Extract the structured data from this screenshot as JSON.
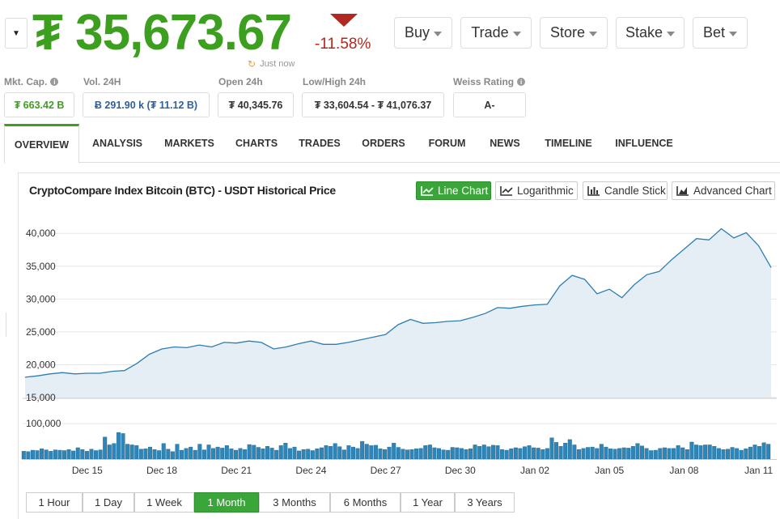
{
  "header": {
    "currency_symbol": "₮",
    "price": "35,673.67",
    "change": "-11.58%",
    "updated": "Just now",
    "buttons": [
      {
        "label": "Buy"
      },
      {
        "label": "Trade"
      },
      {
        "label": "Store"
      },
      {
        "label": "Stake"
      },
      {
        "label": "Bet"
      }
    ]
  },
  "stats": {
    "mkt_cap": {
      "label": "Mkt. Cap.",
      "value": "₮ 663.42 B"
    },
    "vol": {
      "label": "Vol. 24H",
      "value": "Ƀ 291.90 k (₮ 11.12 B)"
    },
    "open": {
      "label": "Open 24h",
      "value": "₮ 40,345.76"
    },
    "lowhigh": {
      "label": "Low/High 24h",
      "value": "₮ 33,604.54 - ₮ 41,076.37"
    },
    "weiss": {
      "label": "Weiss Rating",
      "value": "A-"
    }
  },
  "tabs": [
    "Overview",
    "Analysis",
    "Markets",
    "Charts",
    "Trades",
    "Orders",
    "Forum",
    "News",
    "Timeline",
    "Influence"
  ],
  "active_tab": "Overview",
  "chart_panel": {
    "title": "CryptoCompare Index Bitcoin (BTC) - USDT Historical Price",
    "chart_types": [
      "Line Chart",
      "Logarithmic",
      "Candle Stick",
      "Advanced Chart"
    ],
    "active_chart_type": "Line Chart",
    "ranges": [
      "1 Hour",
      "1 Day",
      "1 Week",
      "1 Month",
      "3 Months",
      "6 Months",
      "1 Year",
      "3 Years"
    ],
    "active_range": "1 Month"
  },
  "colors": {
    "price_green": "#3d9f1f",
    "down_red": "#b0281f",
    "line": "#2d7db3",
    "area": "#e6eef5",
    "volume_bar": "#2e86b8",
    "active_button": "#3aa63a"
  },
  "chart_data": {
    "type": "area",
    "title": "CryptoCompare Index Bitcoin (BTC) - USDT Historical Price",
    "ylim": [
      15000,
      42000
    ],
    "yticks": [
      15000,
      20000,
      25000,
      30000,
      35000,
      40000
    ],
    "ytick_labels": [
      "15,000",
      "20,000",
      "25,000",
      "30,000",
      "35,000",
      "40,000"
    ],
    "x_range_days": [
      0,
      30
    ],
    "xticks": [
      {
        "label": "Dec 15",
        "day": 2.5
      },
      {
        "label": "Dec 18",
        "day": 5.5
      },
      {
        "label": "Dec 21",
        "day": 8.5
      },
      {
        "label": "Dec 24",
        "day": 11.5
      },
      {
        "label": "Dec 27",
        "day": 14.5
      },
      {
        "label": "Dec 30",
        "day": 17.5
      },
      {
        "label": "Jan 02",
        "day": 20.5
      },
      {
        "label": "Jan 05",
        "day": 23.5
      },
      {
        "label": "Jan 08",
        "day": 26.5
      },
      {
        "label": "Jan 11",
        "day": 29.5
      }
    ],
    "price_series": [
      [
        0,
        18100
      ],
      [
        0.5,
        18300
      ],
      [
        1,
        18600
      ],
      [
        1.5,
        18800
      ],
      [
        2,
        18600
      ],
      [
        2.5,
        18700
      ],
      [
        3,
        18700
      ],
      [
        3.5,
        19000
      ],
      [
        4,
        19100
      ],
      [
        4.5,
        20200
      ],
      [
        5,
        21600
      ],
      [
        5.5,
        22400
      ],
      [
        6,
        22700
      ],
      [
        6.5,
        22600
      ],
      [
        7,
        23000
      ],
      [
        7.5,
        22700
      ],
      [
        8,
        23400
      ],
      [
        8.5,
        23300
      ],
      [
        9,
        23600
      ],
      [
        9.5,
        23400
      ],
      [
        10,
        22400
      ],
      [
        10.5,
        22700
      ],
      [
        11,
        23200
      ],
      [
        11.5,
        23600
      ],
      [
        12,
        23100
      ],
      [
        12.5,
        23100
      ],
      [
        13,
        23400
      ],
      [
        13.5,
        23800
      ],
      [
        14,
        24200
      ],
      [
        14.5,
        24600
      ],
      [
        15,
        26100
      ],
      [
        15.5,
        26900
      ],
      [
        16,
        26300
      ],
      [
        16.5,
        26400
      ],
      [
        17,
        26600
      ],
      [
        17.5,
        26700
      ],
      [
        18,
        27200
      ],
      [
        18.5,
        27800
      ],
      [
        19,
        28700
      ],
      [
        19.5,
        28600
      ],
      [
        20,
        28900
      ],
      [
        20.5,
        29100
      ],
      [
        21,
        29200
      ],
      [
        21.5,
        32000
      ],
      [
        22,
        33600
      ],
      [
        22.5,
        33000
      ],
      [
        23,
        30800
      ],
      [
        23.5,
        31500
      ],
      [
        24,
        30200
      ],
      [
        24.5,
        32200
      ],
      [
        25,
        33700
      ],
      [
        25.5,
        34200
      ],
      [
        26,
        36000
      ],
      [
        26.5,
        37600
      ],
      [
        27,
        39200
      ],
      [
        27.5,
        39000
      ],
      [
        28,
        40700
      ],
      [
        28.5,
        39300
      ],
      [
        29,
        40100
      ],
      [
        29.5,
        38100
      ],
      [
        30,
        34800
      ]
    ],
    "volume_ylim": [
      0,
      130000
    ],
    "volume_ytick_labels": [
      "100,000"
    ],
    "volume_series": [
      22000,
      21000,
      25000,
      24000,
      29000,
      26000,
      22000,
      26000,
      25000,
      24000,
      27000,
      23000,
      32000,
      27000,
      22000,
      28000,
      24000,
      26000,
      62000,
      40000,
      44000,
      75000,
      72000,
      42000,
      40000,
      38000,
      28000,
      29000,
      34000,
      27000,
      24000,
      44000,
      28000,
      21000,
      42000,
      25000,
      30000,
      34000,
      25000,
      42000,
      26000,
      40000,
      30000,
      34000,
      31000,
      38000,
      29000,
      25000,
      30000,
      27000,
      41000,
      39000,
      33000,
      29000,
      36000,
      31000,
      25000,
      38000,
      45000,
      30000,
      34000,
      23000,
      27000,
      28000,
      24000,
      29000,
      32000,
      38000,
      36000,
      44000,
      35000,
      26000,
      38000,
      34000,
      30000,
      50000,
      42000,
      38000,
      39000,
      29000,
      27000,
      34000,
      45000,
      33000,
      28000,
      26000,
      27000,
      29000,
      30000,
      38000,
      40000,
      32000,
      30000,
      26000,
      25000,
      33000,
      32000,
      30000,
      27000,
      29000,
      40000,
      36000,
      40000,
      35000,
      39000,
      38000,
      27000,
      25000,
      29000,
      32000,
      30000,
      35000,
      38000,
      32000,
      31000,
      27000,
      30000,
      60000,
      47000,
      36000,
      45000,
      55000,
      40000,
      27000,
      30000,
      33000,
      34000,
      30000,
      42000,
      34000,
      29000,
      28000,
      30000,
      32000,
      31000,
      36000,
      44000,
      37000,
      30000,
      24000,
      25000,
      30000,
      32000,
      30000,
      30000,
      38000,
      32000,
      27000,
      48000,
      40000,
      38000,
      40000,
      40000,
      36000,
      30000,
      27000,
      28000,
      33000,
      30000,
      25000,
      29000,
      34000,
      40000,
      36000,
      46000,
      42000
    ]
  }
}
